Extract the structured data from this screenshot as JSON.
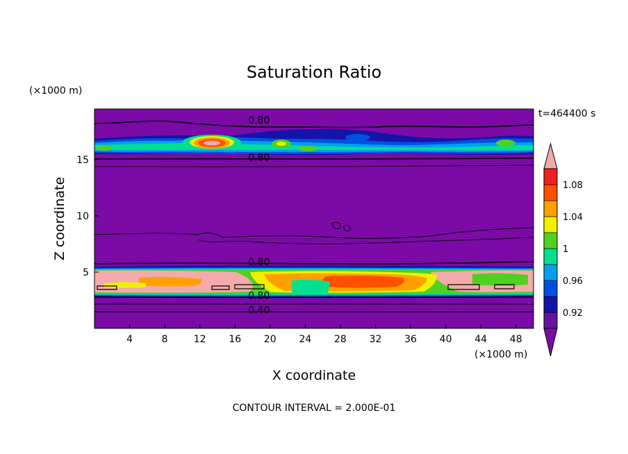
{
  "chart_data": {
    "type": "heatmap",
    "title": "Saturation Ratio",
    "xlabel": "X coordinate",
    "ylabel": "Z coordinate",
    "x_unit": "(×1000 m)",
    "y_unit": "(×1000 m)",
    "time_label": "t=464400 s",
    "footer": "CONTOUR INTERVAL = 2.000E-01",
    "xlim": [
      0,
      50
    ],
    "ylim": [
      0,
      19.5
    ],
    "x_ticks": [
      4,
      8,
      12,
      16,
      20,
      24,
      28,
      32,
      36,
      40,
      44,
      48
    ],
    "y_ticks": [
      5,
      10,
      15
    ],
    "contour_labels": [
      {
        "text": "0.80",
        "x": 17.5,
        "y": 18.4
      },
      {
        "text": "0.80",
        "x": 17.5,
        "y": 15.1
      },
      {
        "text": "0.80",
        "x": 17.5,
        "y": 5.8
      },
      {
        "text": "0.80",
        "x": 17.5,
        "y": 2.8
      },
      {
        "text": "0.40",
        "x": 17.5,
        "y": 1.5
      }
    ],
    "colorbar": {
      "tick_labels": [
        "0.92",
        "0.96",
        "1",
        "1.04",
        "1.08"
      ],
      "tick_values": [
        0.92,
        0.96,
        1.0,
        1.04,
        1.08
      ],
      "levels": [
        0.9,
        0.92,
        0.94,
        0.96,
        0.98,
        1.0,
        1.02,
        1.04,
        1.06,
        1.08,
        1.1
      ],
      "under_color": "#7b0aa6",
      "over_color": "#f4aaaa",
      "colors": [
        "#6414a0",
        "#1414a8",
        "#0050e0",
        "#00a0f0",
        "#00e090",
        "#50d020",
        "#f0f000",
        "#ffa000",
        "#ff5000",
        "#f02020"
      ]
    }
  }
}
